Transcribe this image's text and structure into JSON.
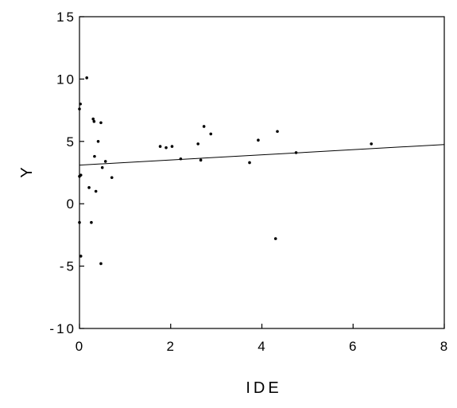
{
  "chart_data": {
    "type": "scatter",
    "title": "",
    "xlabel": "IDE",
    "ylabel": "Y",
    "xlim": [
      0,
      8
    ],
    "ylim": [
      -10,
      15
    ],
    "xticks": [
      0,
      2,
      4,
      6,
      8
    ],
    "yticks": [
      15,
      10,
      5,
      0,
      -5,
      -10
    ],
    "xtick_labels": [
      "0",
      "2",
      "4",
      "6",
      "8"
    ],
    "ytick_labels": [
      "15",
      "10",
      "5",
      "0",
      "-5",
      "-10"
    ],
    "grid": false,
    "points": [
      {
        "x": 0.02,
        "y": 8.0
      },
      {
        "x": 0.0,
        "y": 7.6
      },
      {
        "x": 0.16,
        "y": 10.1
      },
      {
        "x": 0.3,
        "y": 6.8
      },
      {
        "x": 0.32,
        "y": 6.6
      },
      {
        "x": 0.47,
        "y": 6.5
      },
      {
        "x": 0.41,
        "y": 5.0
      },
      {
        "x": 0.33,
        "y": 3.8
      },
      {
        "x": 0.57,
        "y": 3.4
      },
      {
        "x": 0.5,
        "y": 2.9
      },
      {
        "x": 0.71,
        "y": 2.1
      },
      {
        "x": 0.03,
        "y": 2.3
      },
      {
        "x": 0.0,
        "y": 2.2
      },
      {
        "x": 0.21,
        "y": 1.3
      },
      {
        "x": 0.36,
        "y": 1.0
      },
      {
        "x": 0.26,
        "y": -1.5
      },
      {
        "x": 0.0,
        "y": -1.5
      },
      {
        "x": 0.03,
        "y": -4.2
      },
      {
        "x": 0.47,
        "y": -4.8
      },
      {
        "x": 1.77,
        "y": 4.6
      },
      {
        "x": 1.9,
        "y": 4.5
      },
      {
        "x": 2.03,
        "y": 4.6
      },
      {
        "x": 2.22,
        "y": 3.6
      },
      {
        "x": 2.6,
        "y": 4.8
      },
      {
        "x": 2.66,
        "y": 3.5
      },
      {
        "x": 2.73,
        "y": 6.2
      },
      {
        "x": 2.88,
        "y": 5.6
      },
      {
        "x": 3.73,
        "y": 3.3
      },
      {
        "x": 3.92,
        "y": 5.1
      },
      {
        "x": 4.3,
        "y": -2.8
      },
      {
        "x": 4.34,
        "y": 5.8
      },
      {
        "x": 4.75,
        "y": 4.1
      },
      {
        "x": 6.4,
        "y": 4.8
      }
    ],
    "fit_line": {
      "x": [
        0,
        8
      ],
      "y": [
        3.1,
        4.75
      ]
    },
    "colors": {
      "marks": "#000000",
      "background": "#ffffff"
    }
  }
}
